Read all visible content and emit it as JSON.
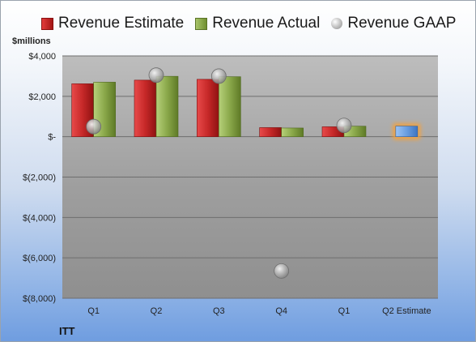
{
  "chart_data": {
    "type": "bar",
    "categories": [
      "Q1",
      "Q2",
      "Q3",
      "Q4",
      "Q1",
      "Q2 Estimate"
    ],
    "series": [
      {
        "name": "Revenue Estimate",
        "values": [
          2620,
          2800,
          2840,
          450,
          490,
          520
        ]
      },
      {
        "name": "Revenue Actual",
        "values": [
          2700,
          2990,
          2970,
          430,
          520,
          null
        ]
      },
      {
        "name": "Revenue GAAP",
        "values": [
          500,
          3050,
          3000,
          -6650,
          560,
          null
        ]
      }
    ],
    "ylabel": "$millions",
    "ylim": [
      -8000,
      4000
    ],
    "yticks": [
      {
        "value": 4000,
        "label": "$4,000"
      },
      {
        "value": 2000,
        "label": "$2,000"
      },
      {
        "value": 0,
        "label": "$-"
      },
      {
        "value": -2000,
        "label": "$(2,000)"
      },
      {
        "value": -4000,
        "label": "$(4,000)"
      },
      {
        "value": -6000,
        "label": "$(6,000)"
      },
      {
        "value": -8000,
        "label": "$(8,000)"
      }
    ],
    "grid": true,
    "legend": "top",
    "colors": {
      "estimate": "#c62828",
      "actual": "#8aa84a",
      "gaap": "#b0b0b0",
      "future_estimate": "#6a9ee0",
      "highlight": "#f5a13a"
    }
  },
  "company": "ITT"
}
